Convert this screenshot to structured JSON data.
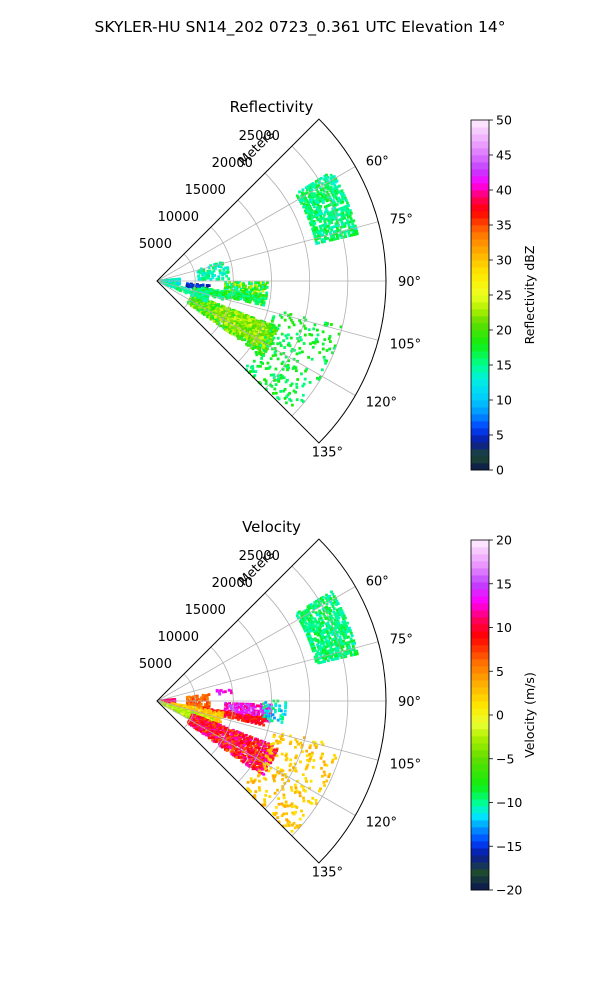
{
  "figure_title": "SKYLER-HU  SN14_202  0723_0.361 UTC Elevation 14°",
  "chart_data": [
    {
      "type": "heatmap",
      "subtype": "polar sector (PPI)",
      "title": "Reflectivity",
      "radial_axis_label": "Meters",
      "r_ticks": [
        5000,
        10000,
        15000,
        20000,
        25000
      ],
      "r_tick_labels": [
        "5000",
        "10000",
        "15000",
        "20000",
        "25000"
      ],
      "r_range": [
        0,
        30000
      ],
      "theta_range_deg": [
        45,
        135
      ],
      "theta_ticks_deg": [
        60,
        75,
        90,
        105,
        120,
        135
      ],
      "theta_tick_labels": [
        "60°",
        "75°",
        "90°",
        "105°",
        "120°",
        "135°"
      ],
      "grid": true,
      "colorbar": {
        "label": "Reflectivity dBZ",
        "range": [
          0,
          50
        ],
        "ticks": [
          0,
          5,
          10,
          15,
          20,
          25,
          30,
          35,
          40,
          45,
          50
        ],
        "tick_labels": [
          "0",
          "5",
          "10",
          "15",
          "20",
          "25",
          "30",
          "35",
          "40",
          "45",
          "50"
        ],
        "colormap_stops": [
          {
            "v": 0,
            "c": "#0a1450"
          },
          {
            "v": 2,
            "c": "#1e4a30"
          },
          {
            "v": 4,
            "c": "#0a1a9a"
          },
          {
            "v": 6,
            "c": "#0040ff"
          },
          {
            "v": 8,
            "c": "#0090ff"
          },
          {
            "v": 10,
            "c": "#00c8ff"
          },
          {
            "v": 13,
            "c": "#00f0e0"
          },
          {
            "v": 15,
            "c": "#00ff90"
          },
          {
            "v": 18,
            "c": "#10ee10"
          },
          {
            "v": 21,
            "c": "#60dd00"
          },
          {
            "v": 23,
            "c": "#b0f000"
          },
          {
            "v": 25,
            "c": "#eeff20"
          },
          {
            "v": 28,
            "c": "#ffe800"
          },
          {
            "v": 31,
            "c": "#ffb000"
          },
          {
            "v": 34,
            "c": "#ff7000"
          },
          {
            "v": 37,
            "c": "#ff0000"
          },
          {
            "v": 39,
            "c": "#ff0060"
          },
          {
            "v": 41,
            "c": "#ff00ff"
          },
          {
            "v": 43,
            "c": "#c040ff"
          },
          {
            "v": 46,
            "c": "#e890ff"
          },
          {
            "v": 50,
            "c": "#fff0ff"
          }
        ]
      },
      "echo_regions": [
        {
          "r": [
            21500,
            27000
          ],
          "theta": [
            58,
            77
          ],
          "value": [
            13,
            18
          ],
          "density": 0.7
        },
        {
          "r": [
            5500,
            9500
          ],
          "theta": [
            74,
            89
          ],
          "value": [
            12,
            17
          ],
          "density": 0.25
        },
        {
          "r": [
            600,
            3000
          ],
          "theta": [
            85,
            100
          ],
          "value": [
            10,
            16
          ],
          "density": 0.6
        },
        {
          "r": [
            4000,
            7000
          ],
          "theta": [
            95,
            101
          ],
          "value": [
            3,
            7
          ],
          "density": 0.55
        },
        {
          "r": [
            9000,
            14500
          ],
          "theta": [
            91,
            101
          ],
          "value": [
            13,
            25
          ],
          "density": 0.55
        },
        {
          "r": [
            6000,
            14500
          ],
          "theta": [
            99,
            103
          ],
          "value": [
            14,
            20
          ],
          "density": 0.7
        },
        {
          "r": [
            5000,
            10000
          ],
          "theta": [
            101,
            106
          ],
          "value": [
            14,
            18
          ],
          "density": 0.4
        },
        {
          "r": [
            5000,
            17000
          ],
          "theta": [
            111,
            126
          ],
          "value": [
            16,
            24
          ],
          "density": 0.65
        },
        {
          "r": [
            9000,
            17000
          ],
          "theta": [
            112,
            122
          ],
          "value": [
            20,
            25
          ],
          "density": 0.55
        },
        {
          "r": [
            16000,
            25000
          ],
          "theta": [
            104,
            135
          ],
          "value": [
            15,
            19
          ],
          "density": 0.15
        },
        {
          "r": [
            1000,
            7000
          ],
          "theta": [
            104,
            113
          ],
          "value": [
            13,
            17
          ],
          "density": 0.3
        }
      ]
    },
    {
      "type": "heatmap",
      "subtype": "polar sector (PPI)",
      "title": "Velocity",
      "radial_axis_label": "Meters",
      "r_ticks": [
        5000,
        10000,
        15000,
        20000,
        25000
      ],
      "r_tick_labels": [
        "5000",
        "10000",
        "15000",
        "20000",
        "25000"
      ],
      "r_range": [
        0,
        30000
      ],
      "theta_range_deg": [
        45,
        135
      ],
      "theta_ticks_deg": [
        60,
        75,
        90,
        105,
        120,
        135
      ],
      "theta_tick_labels": [
        "60°",
        "75°",
        "90°",
        "105°",
        "120°",
        "135°"
      ],
      "grid": true,
      "colorbar": {
        "label": "Velocity (m/s)",
        "range": [
          -20,
          20
        ],
        "ticks": [
          -20,
          -15,
          -10,
          -5,
          0,
          5,
          10,
          15,
          20
        ],
        "tick_labels": [
          "−20",
          "−15",
          "−10",
          "−5",
          "0",
          "5",
          "10",
          "15",
          "20"
        ],
        "colormap_stops": [
          {
            "v": -20,
            "c": "#0a1450"
          },
          {
            "v": -18,
            "c": "#1e4a30"
          },
          {
            "v": -16,
            "c": "#0a1a9a"
          },
          {
            "v": -14.5,
            "c": "#0040ff"
          },
          {
            "v": -13,
            "c": "#0090ff"
          },
          {
            "v": -11.5,
            "c": "#00e8ff"
          },
          {
            "v": -10,
            "c": "#00ff90"
          },
          {
            "v": -8,
            "c": "#10ee10"
          },
          {
            "v": -5,
            "c": "#60dd00"
          },
          {
            "v": -2.5,
            "c": "#b0f000"
          },
          {
            "v": -1,
            "c": "#e8ff30"
          },
          {
            "v": 1,
            "c": "#ffe800"
          },
          {
            "v": 3.5,
            "c": "#ffb000"
          },
          {
            "v": 6,
            "c": "#ff7000"
          },
          {
            "v": 9,
            "c": "#ff0000"
          },
          {
            "v": 11,
            "c": "#ff0060"
          },
          {
            "v": 13,
            "c": "#ff00ff"
          },
          {
            "v": 15,
            "c": "#c040ff"
          },
          {
            "v": 17,
            "c": "#e890ff"
          },
          {
            "v": 20,
            "c": "#fff0ff"
          }
        ]
      },
      "echo_regions": [
        {
          "r": [
            21500,
            27000
          ],
          "theta": [
            58,
            77
          ],
          "value": [
            -11,
            -8
          ],
          "density": 0.7
        },
        {
          "r": [
            8000,
            10000
          ],
          "theta": [
            80,
            84
          ],
          "value": [
            12,
            15
          ],
          "density": 0.3
        },
        {
          "r": [
            500,
            2500
          ],
          "theta": [
            85,
            98
          ],
          "value": [
            9,
            13
          ],
          "density": 0.65
        },
        {
          "r": [
            4000,
            7000
          ],
          "theta": [
            83,
            101
          ],
          "value": [
            5,
            8
          ],
          "density": 0.3
        },
        {
          "r": [
            9000,
            15000
          ],
          "theta": [
            92,
            101
          ],
          "value": [
            11,
            16
          ],
          "density": 0.55
        },
        {
          "r": [
            14000,
            17000
          ],
          "theta": [
            90,
            100
          ],
          "value": [
            -13,
            -9
          ],
          "density": 0.3
        },
        {
          "r": [
            6000,
            14500
          ],
          "theta": [
            99,
            103
          ],
          "value": [
            7,
            11
          ],
          "density": 0.7
        },
        {
          "r": [
            2000,
            9000
          ],
          "theta": [
            100,
            110
          ],
          "value": [
            1,
            4
          ],
          "density": 0.6
        },
        {
          "r": [
            500,
            8000
          ],
          "theta": [
            108,
            118
          ],
          "value": [
            -4,
            -1
          ],
          "density": 0.6
        },
        {
          "r": [
            5000,
            17000
          ],
          "theta": [
            111,
            126
          ],
          "value": [
            6,
            13
          ],
          "density": 0.65
        },
        {
          "r": [
            16000,
            25000
          ],
          "theta": [
            104,
            135
          ],
          "value": [
            1,
            4
          ],
          "density": 0.15
        }
      ]
    }
  ]
}
